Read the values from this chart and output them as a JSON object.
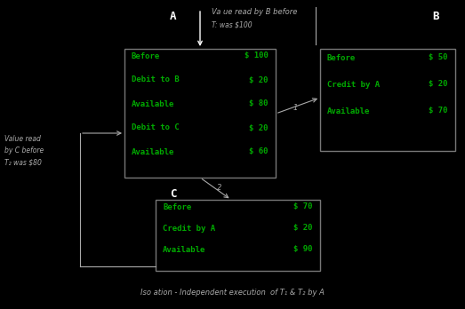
{
  "bg_color": "#000000",
  "text_color_green": "#00aa00",
  "text_color_white": "#ffffff",
  "text_color_gray": "#aaaaaa",
  "box_edge_color": "#777777",
  "title_A": "A",
  "title_B": "B",
  "title_C": "C",
  "top_label": "Va ue read by B before",
  "top_sublabel": "T: was $100",
  "left_label": "Value read\nby C before\nT₂ was $80",
  "bottom_label": "Iso ation - Independent execution  of T₁ & T₂ by A",
  "center_box_lines": [
    [
      "Before",
      "$ 100"
    ],
    [
      "Debit to B",
      "$ 20"
    ],
    [
      "Available",
      "$ 80"
    ],
    [
      "Debit to C",
      "$ 20"
    ],
    [
      "Available",
      "$ 60"
    ]
  ],
  "right_box_lines": [
    [
      "Before",
      "$ 50"
    ],
    [
      "Credit by A",
      "$ 20"
    ],
    [
      "Available",
      "$ 70"
    ]
  ],
  "bottom_box_lines": [
    [
      "Before",
      "$ 70"
    ],
    [
      "Credit by A",
      "$ 20"
    ],
    [
      "Available",
      "$ 90"
    ]
  ],
  "arrow1_label": "1",
  "arrow2_label": "2"
}
